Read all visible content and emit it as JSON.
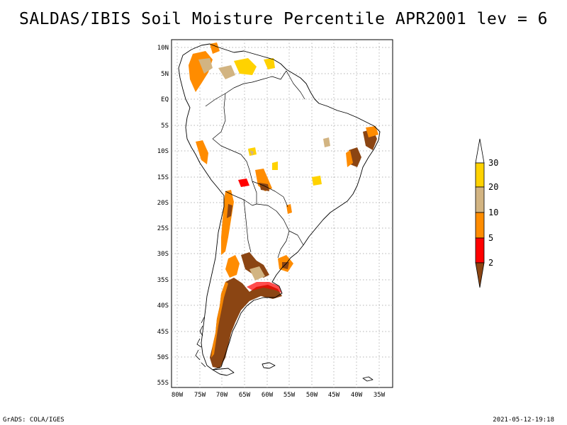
{
  "title": "SALDAS/IBIS Soil Moisture Percentile APR2001 lev = 6",
  "lat_ticks": [
    "10N",
    "5N",
    "EQ",
    "5S",
    "10S",
    "15S",
    "20S",
    "25S",
    "30S",
    "35S",
    "40S",
    "45S",
    "50S",
    "55S"
  ],
  "lon_ticks": [
    "80W",
    "75W",
    "70W",
    "65W",
    "60W",
    "55W",
    "50W",
    "45W",
    "40W",
    "35W"
  ],
  "colorbar": {
    "labels": [
      "30",
      "20",
      "10",
      "5",
      "2"
    ],
    "colors": {
      "above_30": "#ffffff",
      "c20_30": "#ffd200",
      "c10_20": "#d2b482",
      "c5_10": "#ff8c00",
      "c2_5": "#ff0000",
      "below_2": "#8b4513"
    }
  },
  "footer": {
    "left": "GrADS: COLA/IGES",
    "right": "2021-05-12-19:18"
  }
}
